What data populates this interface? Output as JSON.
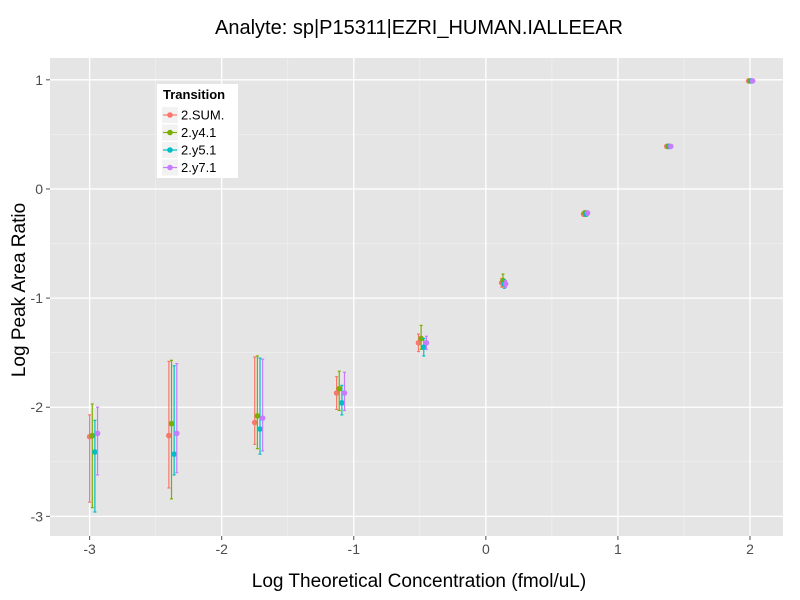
{
  "chart_data": {
    "type": "scatter",
    "title": "Analyte: sp|P15311|EZRI_HUMAN.IALLEEAR",
    "xlabel": "Log Theoretical Concentration (fmol/uL)",
    "ylabel": "Log Peak Area Ratio",
    "xlim": [
      -3.3,
      2.25
    ],
    "ylim": [
      -3.18,
      1.2
    ],
    "x_ticks": [
      -3,
      -2,
      -1,
      0,
      1,
      2
    ],
    "x_tick_labels": [
      "-3",
      "-2",
      "-1",
      "0",
      "1",
      "2"
    ],
    "y_ticks": [
      -3,
      -2,
      -1,
      0,
      1
    ],
    "y_tick_labels": [
      "-3",
      "-2",
      "-1",
      "0",
      "1"
    ],
    "grid": true,
    "legend": {
      "title": "Transition",
      "position": "top-left"
    },
    "series": [
      {
        "name": "2.SUM.",
        "color": "#F8766D",
        "points": [
          {
            "x": -3.0,
            "y": -2.27,
            "ymin": -2.87,
            "ymax": -2.07
          },
          {
            "x": -2.4,
            "y": -2.26,
            "ymin": -2.74,
            "ymax": -1.58
          },
          {
            "x": -1.75,
            "y": -2.14,
            "ymin": -2.34,
            "ymax": -1.54
          },
          {
            "x": -1.13,
            "y": -1.87,
            "ymin": -2.02,
            "ymax": -1.72
          },
          {
            "x": -0.51,
            "y": -1.41,
            "ymin": -1.49,
            "ymax": -1.33
          },
          {
            "x": 0.12,
            "y": -0.86,
            "ymin": -0.9,
            "ymax": -0.82
          },
          {
            "x": 0.74,
            "y": -0.23,
            "ymin": -0.25,
            "ymax": -0.21
          },
          {
            "x": 1.37,
            "y": 0.39,
            "ymin": 0.38,
            "ymax": 0.4
          },
          {
            "x": 1.99,
            "y": 0.99,
            "ymin": 0.98,
            "ymax": 1.0
          }
        ]
      },
      {
        "name": "2.y4.1",
        "color": "#7CAE00",
        "points": [
          {
            "x": -2.98,
            "y": -2.26,
            "ymin": -2.92,
            "ymax": -1.97
          },
          {
            "x": -2.38,
            "y": -2.15,
            "ymin": -2.84,
            "ymax": -1.57
          },
          {
            "x": -1.73,
            "y": -2.08,
            "ymin": -2.38,
            "ymax": -1.53
          },
          {
            "x": -1.11,
            "y": -1.83,
            "ymin": -2.03,
            "ymax": -1.67
          },
          {
            "x": -0.49,
            "y": -1.37,
            "ymin": -1.47,
            "ymax": -1.25
          },
          {
            "x": 0.13,
            "y": -0.84,
            "ymin": -0.89,
            "ymax": -0.78
          },
          {
            "x": 0.75,
            "y": -0.22,
            "ymin": -0.25,
            "ymax": -0.2
          },
          {
            "x": 1.38,
            "y": 0.39,
            "ymin": 0.38,
            "ymax": 0.41
          },
          {
            "x": 2.0,
            "y": 0.99,
            "ymin": 0.98,
            "ymax": 1.0
          }
        ]
      },
      {
        "name": "2.y5.1",
        "color": "#00BFC4",
        "points": [
          {
            "x": -2.96,
            "y": -2.41,
            "ymin": -2.96,
            "ymax": -2.12
          },
          {
            "x": -2.36,
            "y": -2.43,
            "ymin": -2.62,
            "ymax": -1.62
          },
          {
            "x": -1.71,
            "y": -2.2,
            "ymin": -2.43,
            "ymax": -1.55
          },
          {
            "x": -1.09,
            "y": -1.96,
            "ymin": -2.07,
            "ymax": -1.8
          },
          {
            "x": -0.47,
            "y": -1.45,
            "ymin": -1.53,
            "ymax": -1.37
          },
          {
            "x": 0.14,
            "y": -0.87,
            "ymin": -0.91,
            "ymax": -0.83
          },
          {
            "x": 0.76,
            "y": -0.23,
            "ymin": -0.25,
            "ymax": -0.21
          },
          {
            "x": 1.39,
            "y": 0.39,
            "ymin": 0.38,
            "ymax": 0.4
          },
          {
            "x": 2.01,
            "y": 0.99,
            "ymin": 0.98,
            "ymax": 1.0
          }
        ]
      },
      {
        "name": "2.y7.1",
        "color": "#C77CFF",
        "points": [
          {
            "x": -2.94,
            "y": -2.24,
            "ymin": -2.62,
            "ymax": -2.0
          },
          {
            "x": -2.34,
            "y": -2.24,
            "ymin": -2.6,
            "ymax": -1.6
          },
          {
            "x": -1.69,
            "y": -2.1,
            "ymin": -2.4,
            "ymax": -1.56
          },
          {
            "x": -1.07,
            "y": -1.87,
            "ymin": -2.03,
            "ymax": -1.68
          },
          {
            "x": -0.45,
            "y": -1.41,
            "ymin": -1.47,
            "ymax": -1.35
          },
          {
            "x": 0.15,
            "y": -0.87,
            "ymin": -0.9,
            "ymax": -0.84
          },
          {
            "x": 0.77,
            "y": -0.22,
            "ymin": -0.24,
            "ymax": -0.21
          },
          {
            "x": 1.4,
            "y": 0.39,
            "ymin": 0.38,
            "ymax": 0.4
          },
          {
            "x": 2.02,
            "y": 0.99,
            "ymin": 0.98,
            "ymax": 1.0
          }
        ]
      }
    ]
  }
}
